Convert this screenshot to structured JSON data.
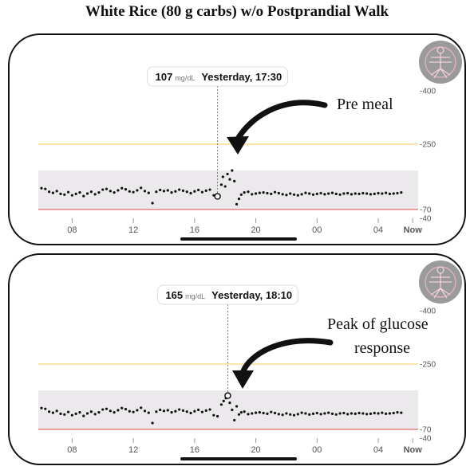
{
  "title": "White Rice (80 g carbs) w/o Postprandial Walk",
  "colors": {
    "target_band": "#ebe9eb",
    "high_line": "#f0d774",
    "low_line": "#e46a6a",
    "point": "#111111"
  },
  "chart_data": [
    {
      "type": "scatter",
      "y_axis_ticks": [
        "400",
        "250",
        "70",
        "40"
      ],
      "x_axis_ticks": [
        "08",
        "12",
        "16",
        "20",
        "00",
        "04",
        "Now"
      ],
      "ylim": [
        40,
        400
      ],
      "target_range": [
        70,
        180
      ],
      "thresholds": {
        "high": 250,
        "low": 70
      },
      "tooltip": {
        "value": "107",
        "unit": "mg/dL",
        "time": "Yesterday, 17:30"
      },
      "annotation": [
        "Pre meal"
      ],
      "highlight": {
        "x": 17.5,
        "y": 107
      },
      "x": [
        6.0,
        6.25,
        6.5,
        6.75,
        7.0,
        7.25,
        7.5,
        7.75,
        8.0,
        8.25,
        8.5,
        8.75,
        9.0,
        9.25,
        9.5,
        9.75,
        10.0,
        10.25,
        10.5,
        10.75,
        11.0,
        11.25,
        11.5,
        11.75,
        12.0,
        12.25,
        12.5,
        12.75,
        13.0,
        13.25,
        13.5,
        13.75,
        14.0,
        14.25,
        14.5,
        14.75,
        15.0,
        15.25,
        15.5,
        15.75,
        16.0,
        16.25,
        16.5,
        16.75,
        17.0,
        17.25,
        17.5,
        17.75,
        17.85,
        18.0,
        18.15,
        18.3,
        18.45,
        18.6,
        18.75,
        18.9,
        19.05,
        19.25,
        19.5,
        19.75,
        20.0,
        20.25,
        20.5,
        20.75,
        21.0,
        21.25,
        21.5,
        21.75,
        22.0,
        22.25,
        22.5,
        22.75,
        23.0,
        23.25,
        23.5,
        23.75,
        24.0,
        24.25,
        24.5,
        24.75,
        25.0,
        25.25,
        25.5,
        25.75,
        26.0,
        26.25,
        26.5,
        26.75,
        27.0,
        27.25,
        27.5,
        27.75,
        28.0,
        28.25,
        28.5,
        28.75,
        29.0,
        29.25,
        29.5
      ],
      "y": [
        130,
        128,
        120,
        117,
        122,
        114,
        112,
        119,
        110,
        114,
        118,
        108,
        115,
        120,
        113,
        118,
        126,
        128,
        122,
        118,
        124,
        130,
        127,
        121,
        119,
        124,
        131,
        122,
        117,
        88,
        120,
        125,
        122,
        124,
        118,
        121,
        126,
        123,
        120,
        116,
        121,
        125,
        119,
        123,
        126,
        110,
        107,
        140,
        162,
        135,
        170,
        155,
        180,
        150,
        85,
        100,
        112,
        118,
        120,
        113,
        115,
        117,
        118,
        116,
        114,
        119,
        116,
        113,
        111,
        115,
        112,
        110,
        113,
        117,
        115,
        112,
        114,
        116,
        113,
        115,
        117,
        114,
        112,
        115,
        116,
        113,
        115,
        114,
        116,
        115,
        113,
        114,
        116,
        115,
        117,
        114,
        115,
        116,
        118
      ]
    },
    {
      "type": "scatter",
      "y_axis_ticks": [
        "400",
        "250",
        "70",
        "40"
      ],
      "x_axis_ticks": [
        "08",
        "12",
        "16",
        "20",
        "00",
        "04",
        "Now"
      ],
      "ylim": [
        40,
        400
      ],
      "target_range": [
        70,
        180
      ],
      "thresholds": {
        "high": 250,
        "low": 70
      },
      "tooltip": {
        "value": "165",
        "unit": "mg/dL",
        "time": "Yesterday, 18:10"
      },
      "annotation": [
        "Peak of glucose",
        "response"
      ],
      "highlight": {
        "x": 18.17,
        "y": 165
      },
      "x": [
        6.0,
        6.25,
        6.5,
        6.75,
        7.0,
        7.25,
        7.5,
        7.75,
        8.0,
        8.25,
        8.5,
        8.75,
        9.0,
        9.25,
        9.5,
        9.75,
        10.0,
        10.25,
        10.5,
        10.75,
        11.0,
        11.25,
        11.5,
        11.75,
        12.0,
        12.25,
        12.5,
        12.75,
        13.0,
        13.25,
        13.5,
        13.75,
        14.0,
        14.25,
        14.5,
        14.75,
        15.0,
        15.25,
        15.5,
        15.75,
        16.0,
        16.25,
        16.5,
        16.75,
        17.0,
        17.25,
        17.5,
        17.75,
        17.9,
        18.05,
        18.17,
        18.3,
        18.45,
        18.6,
        18.75,
        18.9,
        19.05,
        19.25,
        19.5,
        19.75,
        20.0,
        20.25,
        20.5,
        20.75,
        21.0,
        21.25,
        21.5,
        21.75,
        22.0,
        22.25,
        22.5,
        22.75,
        23.0,
        23.25,
        23.5,
        23.75,
        24.0,
        24.25,
        24.5,
        24.75,
        25.0,
        25.25,
        25.5,
        25.75,
        26.0,
        26.25,
        26.5,
        26.75,
        27.0,
        27.25,
        27.5,
        27.75,
        28.0,
        28.25,
        28.5,
        28.75,
        29.0,
        29.25,
        29.5
      ],
      "y": [
        130,
        128,
        120,
        117,
        122,
        114,
        112,
        119,
        110,
        114,
        118,
        108,
        115,
        120,
        113,
        118,
        126,
        128,
        122,
        118,
        124,
        130,
        127,
        121,
        119,
        124,
        131,
        122,
        117,
        88,
        120,
        125,
        122,
        124,
        118,
        121,
        126,
        123,
        120,
        116,
        121,
        125,
        119,
        123,
        126,
        110,
        107,
        140,
        150,
        158,
        165,
        145,
        125,
        96,
        135,
        112,
        118,
        120,
        113,
        115,
        117,
        118,
        116,
        114,
        119,
        116,
        113,
        111,
        115,
        112,
        110,
        113,
        117,
        115,
        112,
        114,
        116,
        113,
        115,
        117,
        114,
        112,
        115,
        116,
        113,
        115,
        114,
        116,
        115,
        113,
        114,
        116,
        115,
        117,
        114,
        115,
        116,
        118,
        117
      ]
    }
  ]
}
